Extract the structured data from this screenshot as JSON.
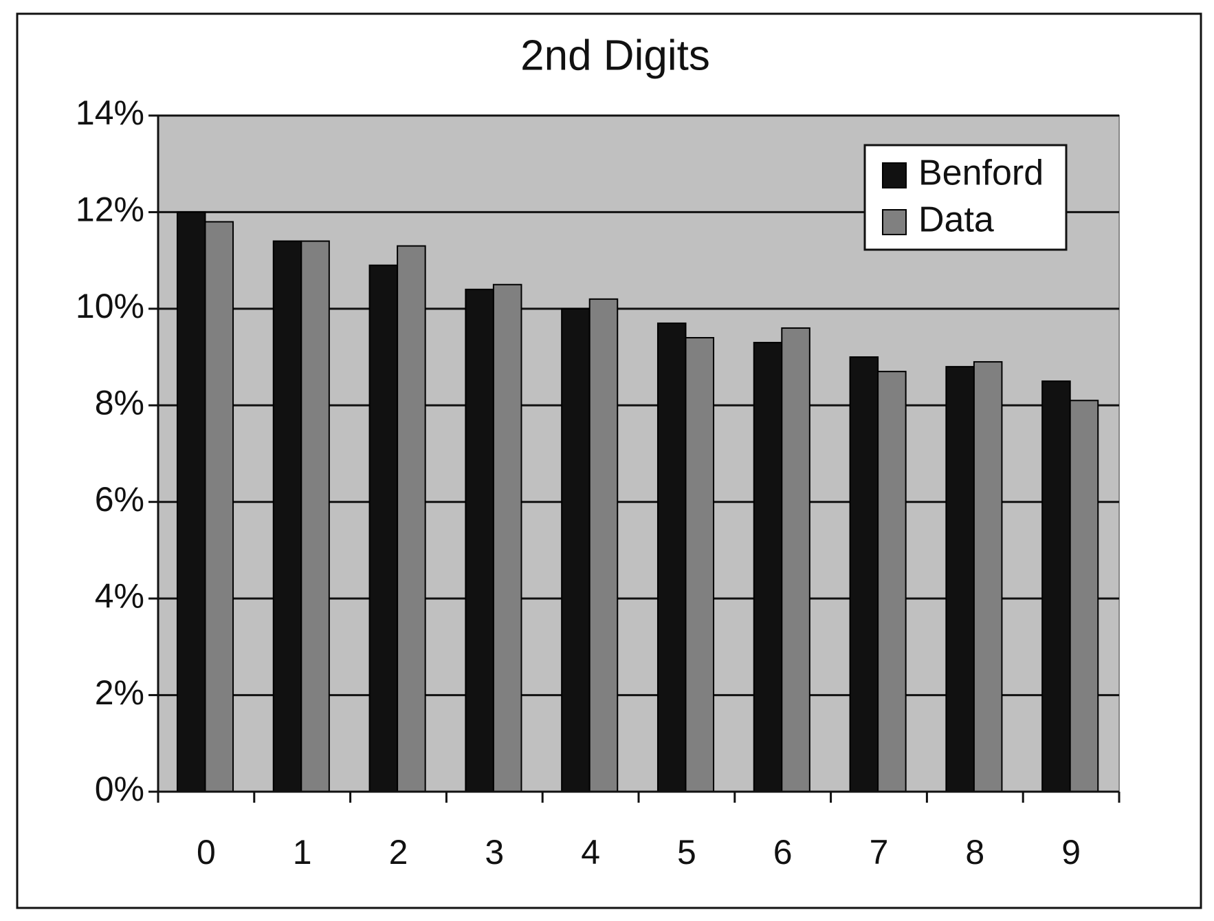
{
  "chart_data": {
    "type": "bar",
    "title": "2nd Digits",
    "categories": [
      "0",
      "1",
      "2",
      "3",
      "4",
      "5",
      "6",
      "7",
      "8",
      "9"
    ],
    "series": [
      {
        "name": "Benford",
        "color": "#111111",
        "values": [
          12.0,
          11.4,
          10.9,
          10.4,
          10.0,
          9.7,
          9.3,
          9.0,
          8.8,
          8.5
        ]
      },
      {
        "name": "Data",
        "color": "#808080",
        "values": [
          11.8,
          11.4,
          11.3,
          10.5,
          10.2,
          9.4,
          9.6,
          8.7,
          8.9,
          8.1
        ]
      }
    ],
    "ylim": [
      0,
      14
    ],
    "yticks": [
      {
        "value": 0,
        "label": "0%"
      },
      {
        "value": 2,
        "label": "2%"
      },
      {
        "value": 4,
        "label": "4%"
      },
      {
        "value": 6,
        "label": "6%"
      },
      {
        "value": 8,
        "label": "8%"
      },
      {
        "value": 10,
        "label": "10%"
      },
      {
        "value": 12,
        "label": "12%"
      },
      {
        "value": 14,
        "label": "14%"
      }
    ],
    "grid": true,
    "legend": "top-right",
    "plot_background": "#c0c0c0"
  }
}
